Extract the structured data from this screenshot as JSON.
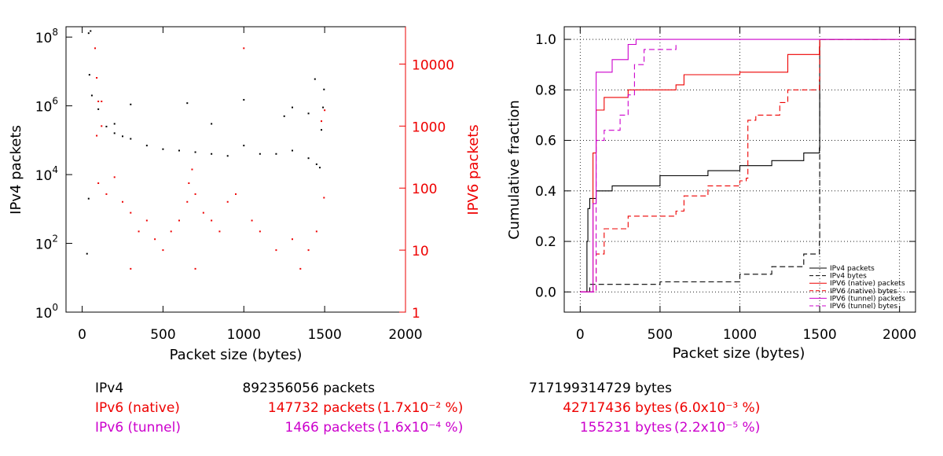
{
  "colors": {
    "ipv4": "#000000",
    "ipv6_native": "#ee0000",
    "ipv6_tunnel": "#cc00cc",
    "grid": "#000000"
  },
  "chart_data": [
    {
      "type": "scatter",
      "xlabel": "Packet size (bytes)",
      "ylabel": "IPv4 packets",
      "ylabel_right": "IPV6 packets",
      "xlim": [
        -100,
        2000
      ],
      "ylim_left": [
        1,
        200000000
      ],
      "yscale_left": "log",
      "ylim_right": [
        1,
        40000
      ],
      "yscale_right": "log",
      "xticks": [
        "0",
        "500",
        "1000",
        "1500",
        "2000"
      ],
      "yticks_left": [
        {
          "base": "10",
          "exp": "0"
        },
        {
          "base": "10",
          "exp": "2"
        },
        {
          "base": "10",
          "exp": "4"
        },
        {
          "base": "10",
          "exp": "6"
        },
        {
          "base": "10",
          "exp": "8"
        }
      ],
      "yticks_right": [
        "1",
        "10",
        "100",
        "1000",
        "10000"
      ],
      "series": [
        {
          "name": "IPv4",
          "axis": "left",
          "points": [
            [
              40,
              130000000
            ],
            [
              52,
              150000000
            ],
            [
              40,
              2000
            ],
            [
              30,
              50
            ],
            [
              45,
              8000000
            ],
            [
              60,
              2000000
            ],
            [
              100,
              800000
            ],
            [
              150,
              250000
            ],
            [
              200,
              160000
            ],
            [
              250,
              130000
            ],
            [
              300,
              110000
            ],
            [
              400,
              70000
            ],
            [
              500,
              55000
            ],
            [
              600,
              50000
            ],
            [
              700,
              45000
            ],
            [
              800,
              40000
            ],
            [
              900,
              35000
            ],
            [
              1000,
              70000
            ],
            [
              1100,
              40000
            ],
            [
              1200,
              40000
            ],
            [
              1300,
              50000
            ],
            [
              1400,
              30000
            ],
            [
              1450,
              20000
            ],
            [
              1470,
              16000
            ],
            [
              1480,
              200000
            ],
            [
              1490,
              900000
            ],
            [
              1496,
              3000000
            ],
            [
              1440,
              6000000
            ],
            [
              1000,
              1500000
            ],
            [
              650,
              1200000
            ],
            [
              1300,
              900000
            ],
            [
              300,
              1100000
            ],
            [
              200,
              300000
            ],
            [
              1250,
              500000
            ],
            [
              1400,
              600000
            ],
            [
              800,
              300000
            ]
          ]
        },
        {
          "name": "IPv6 (native)",
          "axis": "right",
          "points": [
            [
              80,
              18000
            ],
            [
              90,
              6000
            ],
            [
              100,
              2500
            ],
            [
              120,
              1000
            ],
            [
              90,
              700
            ],
            [
              100,
              120
            ],
            [
              150,
              80
            ],
            [
              200,
              150
            ],
            [
              250,
              60
            ],
            [
              300,
              40
            ],
            [
              350,
              20
            ],
            [
              400,
              30
            ],
            [
              450,
              15
            ],
            [
              500,
              10
            ],
            [
              550,
              20
            ],
            [
              600,
              30
            ],
            [
              650,
              60
            ],
            [
              660,
              120
            ],
            [
              680,
              200
            ],
            [
              700,
              80
            ],
            [
              750,
              40
            ],
            [
              800,
              30
            ],
            [
              850,
              20
            ],
            [
              900,
              60
            ],
            [
              950,
              80
            ],
            [
              1000,
              18000
            ],
            [
              1050,
              30
            ],
            [
              1100,
              20
            ],
            [
              1200,
              10
            ],
            [
              1300,
              15
            ],
            [
              1350,
              5
            ],
            [
              1400,
              10
            ],
            [
              1450,
              20
            ],
            [
              1496,
              70
            ],
            [
              1500,
              1800
            ],
            [
              120,
              2500
            ],
            [
              1480,
              1200
            ],
            [
              300,
              5
            ],
            [
              700,
              5
            ]
          ]
        },
        {
          "name": "IPv6 (tunnel)",
          "axis": "right",
          "points": []
        }
      ]
    },
    {
      "type": "line",
      "xlabel": "Packet size (bytes)",
      "ylabel": "Cumulative fraction",
      "xlim": [
        -100,
        2100
      ],
      "ylim": [
        -0.08,
        1.05
      ],
      "xticks": [
        "0",
        "500",
        "1000",
        "1500",
        "2000"
      ],
      "yticks": [
        "0.0",
        "0.2",
        "0.4",
        "0.6",
        "0.8",
        "1.0"
      ],
      "grid": true,
      "legend_position": "bottom-right",
      "series": [
        {
          "name": "IPv4 packets",
          "color": "#000000",
          "dash": "solid",
          "points": [
            [
              0,
              0
            ],
            [
              40,
              0
            ],
            [
              42,
              0.2
            ],
            [
              48,
              0.33
            ],
            [
              60,
              0.37
            ],
            [
              100,
              0.4
            ],
            [
              200,
              0.42
            ],
            [
              500,
              0.46
            ],
            [
              800,
              0.48
            ],
            [
              1000,
              0.5
            ],
            [
              1200,
              0.52
            ],
            [
              1400,
              0.55
            ],
            [
              1498,
              0.57
            ],
            [
              1500,
              1.0
            ],
            [
              2100,
              1.0
            ]
          ]
        },
        {
          "name": "IPv4 bytes",
          "color": "#000000",
          "dash": "dashed",
          "points": [
            [
              0,
              0
            ],
            [
              40,
              0
            ],
            [
              60,
              0.03
            ],
            [
              500,
              0.04
            ],
            [
              1000,
              0.07
            ],
            [
              1200,
              0.1
            ],
            [
              1400,
              0.15
            ],
            [
              1498,
              0.2
            ],
            [
              1500,
              1.0
            ],
            [
              2100,
              1.0
            ]
          ]
        },
        {
          "name": "IPV6 (native) packets",
          "color": "#ee0000",
          "dash": "solid",
          "points": [
            [
              0,
              0
            ],
            [
              40,
              0
            ],
            [
              80,
              0.55
            ],
            [
              100,
              0.72
            ],
            [
              150,
              0.77
            ],
            [
              300,
              0.8
            ],
            [
              600,
              0.82
            ],
            [
              650,
              0.86
            ],
            [
              1000,
              0.87
            ],
            [
              1300,
              0.94
            ],
            [
              1498,
              0.97
            ],
            [
              1500,
              1.0
            ],
            [
              2100,
              1.0
            ]
          ]
        },
        {
          "name": "IPV6 (native) bytes",
          "color": "#ee0000",
          "dash": "dashed",
          "points": [
            [
              0,
              0
            ],
            [
              60,
              0
            ],
            [
              100,
              0.15
            ],
            [
              150,
              0.25
            ],
            [
              300,
              0.3
            ],
            [
              600,
              0.32
            ],
            [
              650,
              0.38
            ],
            [
              800,
              0.42
            ],
            [
              1000,
              0.44
            ],
            [
              1040,
              0.45
            ],
            [
              1050,
              0.68
            ],
            [
              1100,
              0.7
            ],
            [
              1250,
              0.75
            ],
            [
              1300,
              0.8
            ],
            [
              1498,
              0.84
            ],
            [
              1500,
              1.0
            ],
            [
              2100,
              1.0
            ]
          ]
        },
        {
          "name": "IPV6 (tunnel) packets",
          "color": "#cc00cc",
          "dash": "solid",
          "points": [
            [
              0,
              0
            ],
            [
              60,
              0
            ],
            [
              80,
              0.35
            ],
            [
              100,
              0.87
            ],
            [
              200,
              0.92
            ],
            [
              300,
              0.98
            ],
            [
              350,
              1.0
            ],
            [
              2100,
              1.0
            ]
          ]
        },
        {
          "name": "IPV6 (tunnel) bytes",
          "color": "#cc00cc",
          "dash": "dashed",
          "points": [
            [
              0,
              0
            ],
            [
              80,
              0
            ],
            [
              100,
              0.6
            ],
            [
              150,
              0.64
            ],
            [
              250,
              0.7
            ],
            [
              300,
              0.78
            ],
            [
              340,
              0.9
            ],
            [
              400,
              0.96
            ],
            [
              600,
              0.98
            ]
          ]
        }
      ]
    }
  ],
  "stats": [
    {
      "label": "IPv4",
      "packets": "892356056 packets",
      "packets_extra": "",
      "bytes": "717199314729 bytes",
      "bytes_extra": "",
      "color": "#000000"
    },
    {
      "label": "IPv6 (native)",
      "packets": "147732 packets",
      "packets_extra": "(1.7x10⁻² %)",
      "bytes": "42717436 bytes",
      "bytes_extra": "(6.0x10⁻³ %)",
      "color": "#ee0000"
    },
    {
      "label": "IPv6 (tunnel)",
      "packets": "1466 packets",
      "packets_extra": "(1.6x10⁻⁴ %)",
      "bytes": "155231 bytes",
      "bytes_extra": "(2.2x10⁻⁵ %)",
      "color": "#cc00cc"
    }
  ]
}
